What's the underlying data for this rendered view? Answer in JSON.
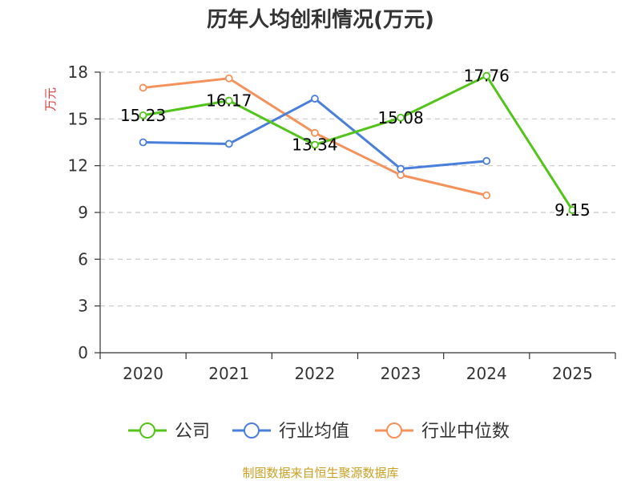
{
  "chart_data": {
    "type": "line",
    "title": "历年人均创利情况(万元)",
    "ylabel": "万元",
    "xlabel": "",
    "categories": [
      "2020",
      "2021",
      "2022",
      "2023",
      "2024",
      "2025"
    ],
    "ylim": [
      0,
      18
    ],
    "yticks": [
      0,
      3,
      6,
      9,
      12,
      15,
      18
    ],
    "grid": true,
    "legend_position": "bottom",
    "series": [
      {
        "name": "公司",
        "color": "#52c41a",
        "values": [
          15.23,
          16.17,
          13.34,
          15.08,
          17.76,
          9.15
        ],
        "labels": [
          "15.23",
          "16.17",
          "13.34",
          "15.08",
          "17.76",
          "9.15"
        ]
      },
      {
        "name": "行业均值",
        "color": "#4a7fd9",
        "values": [
          13.5,
          13.4,
          16.3,
          11.8,
          12.3,
          null
        ]
      },
      {
        "name": "行业中位数",
        "color": "#f5915a",
        "values": [
          17.0,
          17.6,
          14.1,
          11.4,
          10.1,
          null
        ]
      }
    ]
  },
  "source": "制图数据来自恒生聚源数据库"
}
